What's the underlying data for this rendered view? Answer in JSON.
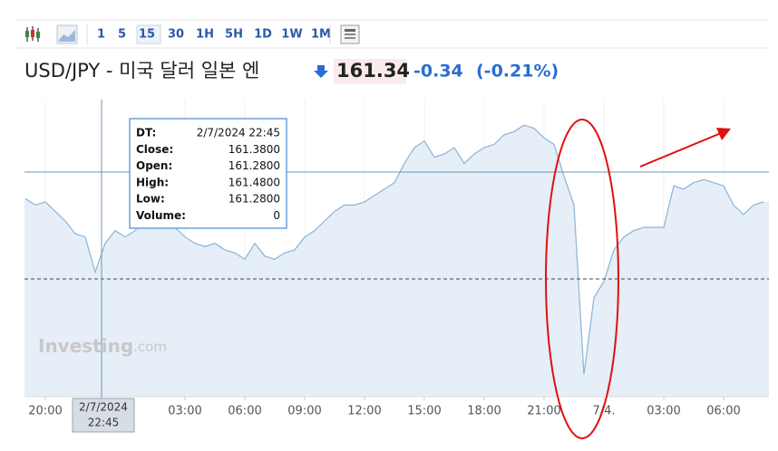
{
  "toolbar": {
    "intervals": [
      "1",
      "5",
      "15",
      "30",
      "1H",
      "5H",
      "1D",
      "1W",
      "1M"
    ],
    "active": 2
  },
  "header": {
    "title": "USD/JPY - 미국 달러 일본 엔",
    "price": "161.34",
    "change": "-0.34",
    "change_pct": "(-0.21%)"
  },
  "tooltip": {
    "rows": [
      [
        "DT:",
        "2/7/2024 22:45"
      ],
      [
        "Close:",
        "161.3800"
      ],
      [
        "Open:",
        "161.2800"
      ],
      [
        "High:",
        "161.4800"
      ],
      [
        "Low:",
        "161.2800"
      ],
      [
        "Volume:",
        "0"
      ]
    ]
  },
  "crosshair_label": [
    "2/7/2024",
    "22:45"
  ],
  "watermark": [
    "Investing",
    ".com"
  ],
  "chart_data": {
    "type": "line",
    "color": "#8ab4d8",
    "fill": "#e6eef7",
    "xlim": [
      0,
      74
    ],
    "ylim": [
      160.85,
      161.78
    ],
    "xticks": [
      {
        "value": 2,
        "label": "20:00"
      },
      {
        "value": 16,
        "label": "03:00"
      },
      {
        "value": 22,
        "label": "06:00"
      },
      {
        "value": 28,
        "label": "09:00"
      },
      {
        "value": 34,
        "label": "12:00"
      },
      {
        "value": 40,
        "label": "15:00"
      },
      {
        "value": 46,
        "label": "18:00"
      },
      {
        "value": 52,
        "label": "21:00"
      },
      {
        "value": 58,
        "label": "7/4."
      },
      {
        "value": 64,
        "label": "03:00"
      },
      {
        "value": 70,
        "label": "06:00"
      }
    ],
    "values": [
      161.47,
      161.45,
      161.46,
      161.43,
      161.4,
      161.36,
      161.35,
      161.24,
      161.33,
      161.37,
      161.35,
      161.37,
      161.41,
      161.4,
      161.38,
      161.38,
      161.35,
      161.33,
      161.32,
      161.33,
      161.31,
      161.3,
      161.28,
      161.33,
      161.29,
      161.28,
      161.3,
      161.31,
      161.35,
      161.37,
      161.4,
      161.43,
      161.45,
      161.45,
      161.46,
      161.48,
      161.5,
      161.52,
      161.58,
      161.63,
      161.65,
      161.6,
      161.61,
      161.63,
      161.58,
      161.61,
      161.63,
      161.64,
      161.67,
      161.68,
      161.7,
      161.69,
      161.66,
      161.64,
      161.54,
      161.45,
      160.92,
      161.16,
      161.21,
      161.31,
      161.35,
      161.37,
      161.38,
      161.38,
      161.38,
      161.51,
      161.5,
      161.52,
      161.53,
      161.52,
      161.51,
      161.45,
      161.42,
      161.45,
      161.46
    ]
  }
}
